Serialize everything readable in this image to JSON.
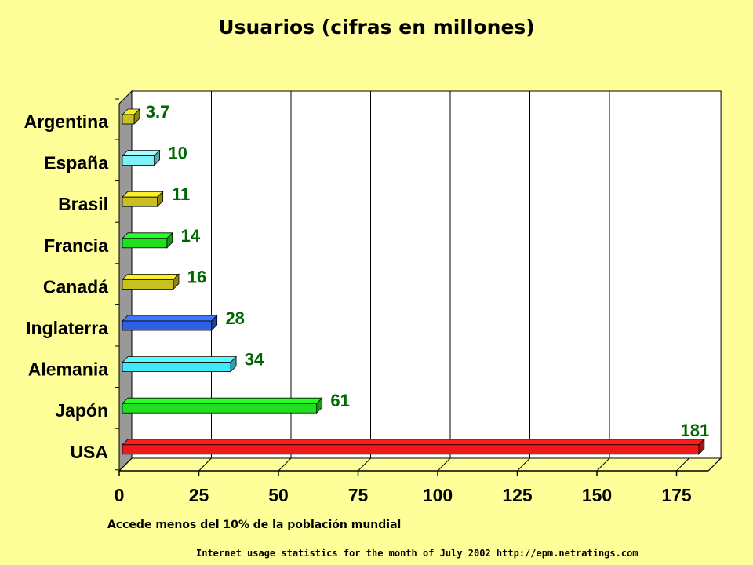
{
  "chart_data": {
    "type": "bar",
    "orientation": "horizontal",
    "title": "Usuarios (cifras en millones)",
    "categories": [
      "Argentina",
      "España",
      "Brasil",
      "Francia",
      "Canadá",
      "Inglaterra",
      "Alemania",
      "Japón",
      "USA"
    ],
    "values": [
      3.7,
      10,
      11,
      14,
      16,
      28,
      34,
      61,
      181
    ],
    "data_labels": [
      "3.7",
      "10",
      "11",
      "14",
      "16",
      "28",
      "34",
      "61",
      "181"
    ],
    "bar_colors": [
      "#C8C020",
      "#80F0F8",
      "#C8C020",
      "#20E020",
      "#C8C020",
      "#3060E0",
      "#40E8F8",
      "#20E020",
      "#F01818"
    ],
    "xlim": [
      0,
      185
    ],
    "xticks": [
      "0",
      "25",
      "50",
      "75",
      "100",
      "125",
      "150",
      "175"
    ],
    "grid": "vertical",
    "three_d": true,
    "label_color": "#006600"
  },
  "notes": {
    "caption": "Accede menos del 10% de la población mundial",
    "source": "Internet usage statistics for the month of July 2002 http://epm.netratings.com"
  },
  "colors": {
    "background": "#FFFF99",
    "wall": "#FFFFFF",
    "side_wall": "#999999"
  }
}
